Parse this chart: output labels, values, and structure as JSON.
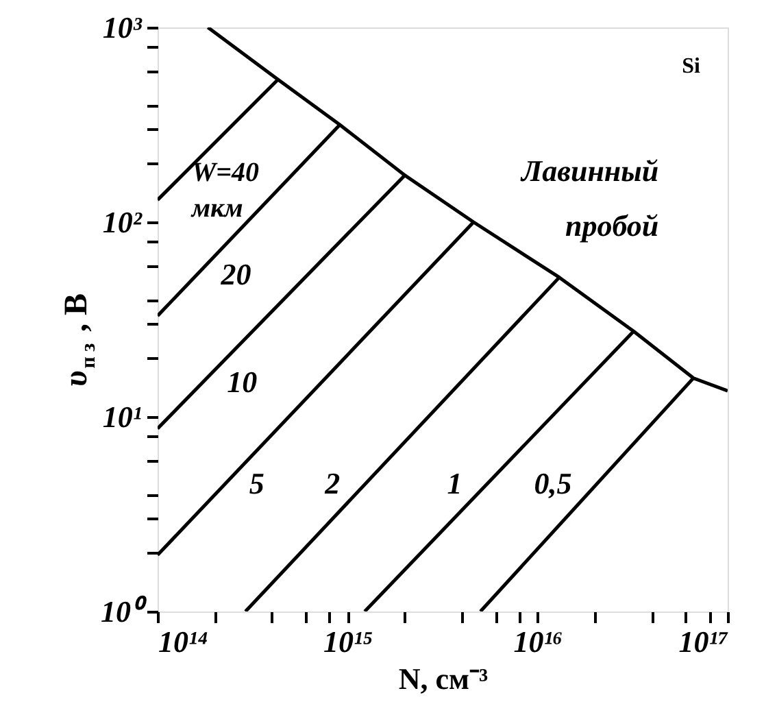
{
  "chart_data": {
    "type": "line",
    "xlabel": "N, см⁻³",
    "ylabel": "υ$_{п з}$, В",
    "log": "xy",
    "grid": false,
    "marker": "none",
    "line_style": "solid",
    "xlim": [
      100000000000000.0,
      1e+17
    ],
    "ylim": [
      1,
      1000
    ],
    "xticks": [
      {
        "value": 100000000000000.0,
        "label": "10¹⁴"
      },
      {
        "value": 200000000000000.0,
        "label": null
      },
      {
        "value": 400000000000000.0,
        "label": null
      },
      {
        "value": 600000000000000.0,
        "label": null
      },
      {
        "value": 800000000000000.0,
        "label": null
      },
      {
        "value": 1000000000000000.0,
        "label": "10¹⁵"
      },
      {
        "value": 2000000000000000.0,
        "label": null
      },
      {
        "value": 4000000000000000.0,
        "label": null
      },
      {
        "value": 6000000000000000.0,
        "label": null
      },
      {
        "value": 8000000000000000.0,
        "label": null
      },
      {
        "value": 1e+16,
        "label": "10¹⁶"
      },
      {
        "value": 2e+16,
        "label": null
      },
      {
        "value": 4e+16,
        "label": null
      },
      {
        "value": 6e+16,
        "label": null
      },
      {
        "value": 8e+16,
        "label": null
      },
      {
        "value": 1e+17,
        "label": "10¹⁷"
      }
    ],
    "yticks": [
      {
        "value": 1,
        "label": "10⁰"
      },
      {
        "value": 2,
        "label": null
      },
      {
        "value": 3,
        "label": null
      },
      {
        "value": 4,
        "label": null
      },
      {
        "value": 6,
        "label": null
      },
      {
        "value": 8,
        "label": null
      },
      {
        "value": 10,
        "label": "10¹"
      },
      {
        "value": 20,
        "label": null
      },
      {
        "value": 30,
        "label": null
      },
      {
        "value": 40,
        "label": null
      },
      {
        "value": 60,
        "label": null
      },
      {
        "value": 80,
        "label": null
      },
      {
        "value": 100,
        "label": "10²"
      },
      {
        "value": 200,
        "label": null
      },
      {
        "value": 300,
        "label": null
      },
      {
        "value": 400,
        "label": null
      },
      {
        "value": 600,
        "label": null
      },
      {
        "value": 800,
        "label": null
      },
      {
        "value": 1000,
        "label": "10³"
      }
    ],
    "series": [
      {
        "color": "#000000",
        "x": [
          100000000000000.0,
          430000000000000.0
        ],
        "values": [
          130,
          540
        ]
      },
      {
        "color": "#000000",
        "x": [
          100000000000000.0,
          910000000000000.0
        ],
        "values": [
          33,
          316
        ]
      },
      {
        "color": "#000000",
        "x": [
          100000000000000.0,
          2000000000000000.0
        ],
        "values": [
          8.7,
          174
        ]
      },
      {
        "color": "#000000",
        "x": [
          100000000000000.0,
          4600000000000000.0
        ],
        "values": [
          1.95,
          100
        ]
      },
      {
        "color": "#000000",
        "x": [
          290000000000000.0,
          1.3e+16
        ],
        "values": [
          1,
          52
        ]
      },
      {
        "color": "#000000",
        "x": [
          1230000000000000.0,
          3.2e+16
        ],
        "values": [
          1,
          27.5
        ]
      },
      {
        "color": "#000000",
        "x": [
          5000000000000000.0,
          6.6e+16
        ],
        "values": [
          1,
          15.8
        ]
      },
      {
        "color": "#000000",
        "x": [
          184000000000000.0,
          430000000000000.0,
          910000000000000.0,
          2000000000000000.0,
          4600000000000000.0,
          1.3e+16,
          3.2e+16,
          6.6e+16,
          1e+17
        ],
        "values": [
          1000,
          540,
          316,
          174,
          100,
          52,
          27.5,
          15.8,
          13.6
        ]
      }
    ],
    "annotations": [
      {
        "text": "W=40 мкм",
        "x": 112000000000000.0,
        "y": 145
      },
      {
        "text": "20",
        "x": 160000000000000.0,
        "y": 53.5
      },
      {
        "text": "10",
        "x": 172000000000000.0,
        "y": 15
      },
      {
        "text": "5",
        "x": 225000000000000.0,
        "y": 4.5
      },
      {
        "text": "2",
        "x": 1230000000000000.0,
        "y": 4.5
      },
      {
        "text": "1",
        "x": 5400000000000000.0,
        "y": 4.5
      },
      {
        "text": "0,5",
        "x": 2.04e+16,
        "y": 4.5
      },
      {
        "text": "Лавинный пробой",
        "x": 3900000000000000.0,
        "y": 112
      },
      "Si"
    ]
  }
}
